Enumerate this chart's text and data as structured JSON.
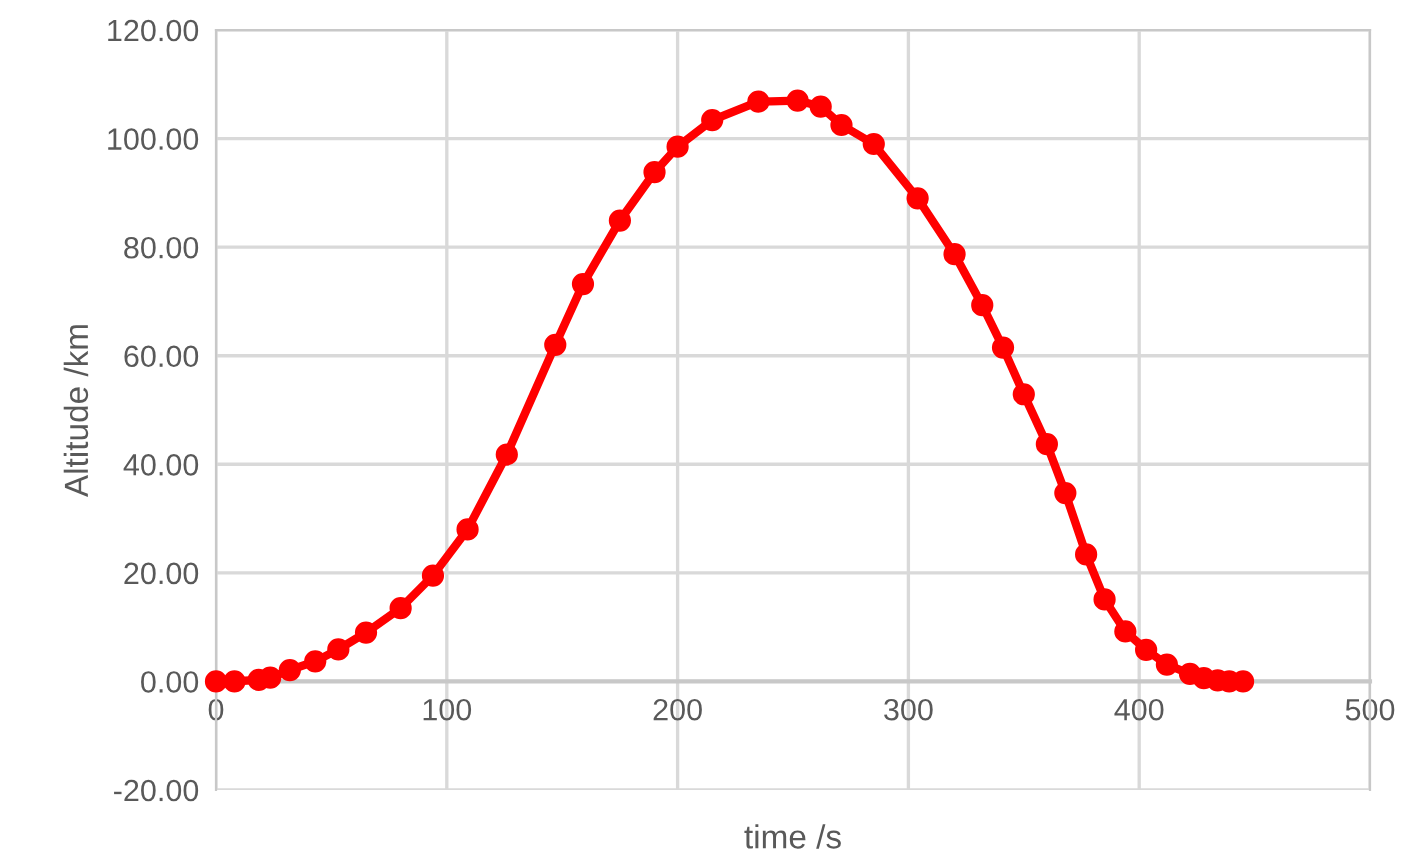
{
  "chart_data": {
    "type": "line",
    "xlabel": "time /s",
    "ylabel": "Altitude /km",
    "x": [
      0,
      8,
      18.5,
      23.5,
      32,
      43,
      53,
      65,
      80,
      94,
      109,
      126,
      147,
      159,
      175,
      190,
      200,
      215,
      235,
      252,
      262,
      271,
      285,
      304,
      320,
      332,
      341,
      350,
      360,
      368,
      377,
      385,
      394,
      403,
      412,
      422,
      428,
      434,
      439,
      445
    ],
    "series": [
      {
        "color": "#ff0000",
        "values": [
          0,
          0,
          0.3,
          0.7,
          2.1,
          3.7,
          5.9,
          9.0,
          13.5,
          19.5,
          28,
          41.8,
          62,
          73.2,
          84.9,
          93.8,
          98.5,
          103.4,
          106.8,
          107,
          105.9,
          102.5,
          99,
          89,
          78.7,
          69.3,
          61.5,
          52.9,
          43.7,
          34.7,
          23.4,
          15.1,
          9.2,
          5.8,
          3.1,
          1.4,
          0.6,
          0.2,
          0,
          0
        ]
      }
    ],
    "xlim": [
      0,
      500
    ],
    "xticks": [
      0,
      100,
      200,
      300,
      400,
      500
    ],
    "ylim": [
      -20,
      120
    ],
    "yticks": [
      {
        "value": -20,
        "label": "-20.00"
      },
      {
        "value": 0,
        "label": "0.00"
      },
      {
        "value": 20,
        "label": "20.00"
      },
      {
        "value": 40,
        "label": "40.00"
      },
      {
        "value": 60,
        "label": "60.00"
      },
      {
        "value": 80,
        "label": "80.00"
      },
      {
        "value": 100,
        "label": "100.00"
      },
      {
        "value": 120,
        "label": "120.00"
      }
    ],
    "grid": true,
    "marker": "circle",
    "line_style": "solid"
  }
}
